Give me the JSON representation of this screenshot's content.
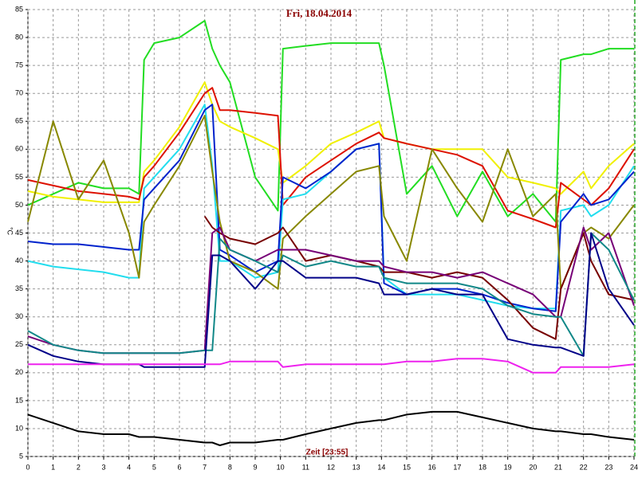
{
  "chart_data": {
    "type": "line",
    "title": "Fri, 18.04.2014",
    "ylabel": "°C",
    "xlabel": "Zeit [23:55]",
    "x": [
      0,
      1,
      2,
      3,
      4,
      4.4,
      4.6,
      5,
      6,
      7,
      7.3,
      7.6,
      8,
      9,
      9.9,
      10.1,
      11,
      12,
      13,
      13.9,
      14.1,
      15,
      16,
      17,
      18,
      19,
      20,
      20.9,
      21.1,
      22,
      22.3,
      23,
      24
    ],
    "xlim": [
      0,
      24
    ],
    "xticks": [
      0,
      1,
      2,
      3,
      4,
      5,
      6,
      7,
      8,
      9,
      10,
      11,
      12,
      13,
      14,
      15,
      16,
      17,
      18,
      19,
      20,
      21,
      22,
      23,
      24
    ],
    "ylim": [
      5,
      85
    ],
    "yticks": [
      5,
      10,
      15,
      20,
      25,
      30,
      35,
      40,
      45,
      50,
      55,
      60,
      65,
      70,
      75,
      80,
      85
    ],
    "grid": true,
    "series": [
      {
        "color": "#22dd22",
        "values": [
          50,
          52,
          54,
          53,
          53,
          52,
          76,
          79,
          80,
          83,
          78,
          75,
          72,
          55,
          49,
          78,
          78.5,
          79,
          79,
          79,
          75,
          52,
          57,
          48,
          56,
          48,
          52,
          47,
          76,
          77,
          77,
          78,
          78
        ]
      },
      {
        "color": "#f0f000",
        "values": [
          52.5,
          51.5,
          51,
          50.5,
          50.5,
          50.5,
          56,
          58,
          64,
          72,
          68,
          65,
          64,
          62,
          60,
          54,
          57,
          61,
          63,
          65,
          62,
          61,
          60,
          60,
          60,
          55,
          54,
          53,
          52,
          56,
          53,
          57,
          61
        ]
      },
      {
        "color": "#dd1100",
        "values": [
          54.5,
          53.5,
          52.5,
          52,
          51.5,
          51,
          55,
          57,
          63,
          70,
          71,
          67,
          67,
          66.5,
          66,
          50,
          55,
          58,
          61,
          63,
          62,
          61,
          60,
          59,
          57,
          49,
          47.5,
          46,
          54,
          51,
          50,
          53,
          60
        ]
      },
      {
        "color": "#22ddee",
        "values": [
          40,
          39,
          38.5,
          38,
          37,
          37,
          53,
          55,
          60,
          68,
          57,
          40,
          40,
          37,
          38,
          51,
          52,
          56,
          60,
          61,
          37,
          34,
          34,
          34,
          33,
          32,
          31.5,
          31.5,
          49,
          50,
          48,
          50,
          57
        ]
      },
      {
        "color": "#0022cc",
        "values": [
          43.5,
          43,
          43,
          42.5,
          42,
          42,
          51,
          53,
          58,
          67,
          68,
          42,
          41,
          38,
          40,
          55,
          53,
          56,
          60,
          61,
          36,
          34,
          35,
          35,
          34,
          32.5,
          31.5,
          31,
          47,
          52,
          50,
          51,
          56
        ]
      },
      {
        "color": "#888800",
        "values": [
          47,
          65,
          51,
          58,
          45,
          37,
          47,
          50,
          57,
          66,
          56,
          47,
          40,
          38,
          35,
          44,
          48,
          52,
          56,
          57,
          48,
          40,
          60,
          53,
          47,
          60,
          48,
          52,
          35,
          45,
          46,
          44,
          50
        ]
      },
      {
        "color": "#770000",
        "values": [
          null,
          null,
          null,
          null,
          null,
          null,
          null,
          null,
          null,
          48,
          46,
          45,
          44,
          43,
          45,
          46,
          40,
          41,
          40,
          39,
          38,
          38,
          37,
          38,
          37,
          33,
          28,
          26,
          35,
          45,
          40,
          34,
          33
        ]
      },
      {
        "color": "#770077",
        "values": [
          26.5,
          25,
          24,
          23.5,
          23.5,
          23.5,
          23.5,
          23.5,
          23.5,
          24,
          45,
          46,
          42,
          40,
          42,
          42,
          42,
          41,
          40,
          40,
          39,
          38,
          38,
          37,
          38,
          36,
          34,
          30,
          30,
          46,
          42,
          45,
          32
        ]
      },
      {
        "color": "#118888",
        "values": [
          27.5,
          25,
          24,
          23.5,
          23.5,
          23.5,
          23.5,
          23.5,
          23.5,
          24,
          24,
          44,
          42,
          40,
          38,
          41,
          39,
          40,
          39,
          39,
          37,
          36,
          36,
          36,
          35,
          32,
          30.5,
          30,
          30,
          23,
          45,
          42,
          33
        ]
      },
      {
        "color": "#000088",
        "values": [
          25,
          23,
          22,
          21.5,
          21.5,
          21.5,
          21,
          21,
          21,
          21,
          41,
          41,
          40,
          35,
          40,
          40,
          37,
          37,
          37,
          36,
          34,
          34,
          35,
          34,
          34,
          26,
          25,
          24.5,
          24.5,
          23,
          45,
          35,
          28.5
        ]
      },
      {
        "color": "#ee22ee",
        "values": [
          21.5,
          21.5,
          21.5,
          21.5,
          21.5,
          21.5,
          21.5,
          21.5,
          21.5,
          21.5,
          21.5,
          21.5,
          22,
          22,
          22,
          21,
          21.5,
          21.5,
          21.5,
          21.5,
          21.5,
          22,
          22,
          22.5,
          22.5,
          22,
          20,
          20,
          21,
          21,
          21,
          21,
          21.5
        ]
      },
      {
        "color": "#000000",
        "values": [
          12.5,
          11,
          9.5,
          9,
          9,
          8.5,
          8.5,
          8.5,
          8,
          7.5,
          7.5,
          7,
          7.5,
          7.5,
          8,
          8,
          9,
          10,
          11,
          11.5,
          11.5,
          12.5,
          13,
          13,
          12,
          11,
          10,
          9.5,
          9.5,
          9,
          9,
          8.5,
          8
        ]
      }
    ]
  }
}
